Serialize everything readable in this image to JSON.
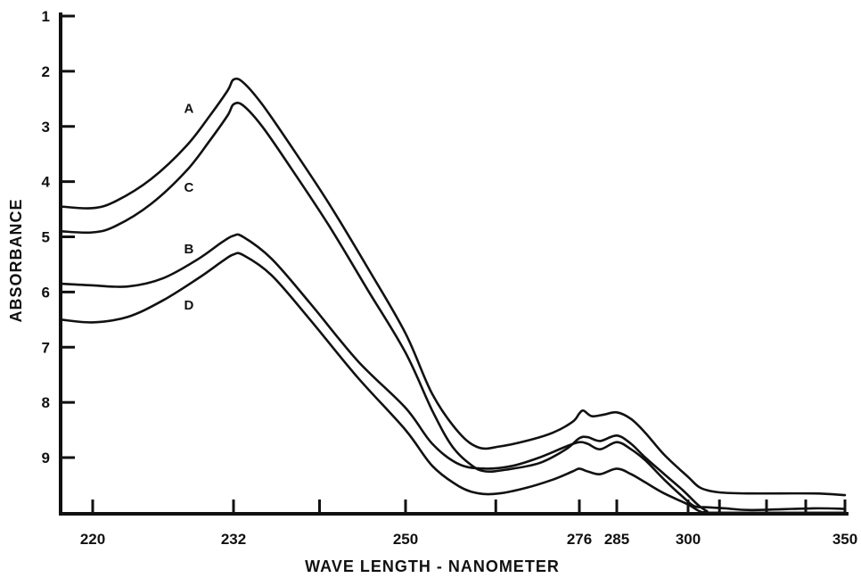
{
  "chart_data": {
    "type": "line",
    "xlabel": "WAVE LENGTH - NANOMETER",
    "ylabel": "ABSORBANCE",
    "x_ticks": [
      "220",
      "232",
      "250",
      "276",
      "285",
      "300",
      "350"
    ],
    "y_ticks": [
      "1",
      "2",
      "3",
      "4",
      "5",
      "6",
      "7",
      "8",
      "9"
    ],
    "ylim": [
      1,
      10
    ],
    "y_axis_direction": "increasing-downward",
    "grid": false,
    "legend": "inline labels",
    "series": [
      {
        "name": "A",
        "points": [
          [
            218.5,
            4.45
          ],
          [
            220,
            4.48
          ],
          [
            222,
            4.35
          ],
          [
            225,
            3.95
          ],
          [
            228,
            3.35
          ],
          [
            230,
            2.8
          ],
          [
            231.5,
            2.35
          ],
          [
            232,
            2.15
          ],
          [
            233,
            2.2
          ],
          [
            235,
            2.6
          ],
          [
            238,
            3.35
          ],
          [
            242,
            4.4
          ],
          [
            246,
            5.55
          ],
          [
            250,
            6.75
          ],
          [
            254,
            7.85
          ],
          [
            258,
            8.55
          ],
          [
            261,
            8.82
          ],
          [
            264,
            8.8
          ],
          [
            268,
            8.7
          ],
          [
            272,
            8.55
          ],
          [
            275,
            8.35
          ],
          [
            276,
            8.2
          ],
          [
            277,
            8.15
          ],
          [
            279,
            8.25
          ],
          [
            282,
            8.22
          ],
          [
            285,
            8.18
          ],
          [
            288,
            8.3
          ],
          [
            291,
            8.55
          ],
          [
            295,
            8.95
          ],
          [
            300,
            9.35
          ],
          [
            304,
            9.55
          ],
          [
            310,
            9.63
          ],
          [
            320,
            9.65
          ],
          [
            340,
            9.65
          ],
          [
            350,
            9.68
          ]
        ]
      },
      {
        "name": "C",
        "points": [
          [
            218.5,
            4.9
          ],
          [
            220,
            4.92
          ],
          [
            222,
            4.8
          ],
          [
            225,
            4.4
          ],
          [
            228,
            3.8
          ],
          [
            230,
            3.25
          ],
          [
            231.5,
            2.8
          ],
          [
            232,
            2.6
          ],
          [
            233,
            2.62
          ],
          [
            235,
            3.0
          ],
          [
            238,
            3.75
          ],
          [
            242,
            4.8
          ],
          [
            246,
            5.95
          ],
          [
            250,
            7.1
          ],
          [
            254,
            8.15
          ],
          [
            257,
            8.8
          ],
          [
            260,
            9.15
          ],
          [
            262,
            9.25
          ],
          [
            265,
            9.22
          ],
          [
            270,
            9.1
          ],
          [
            274,
            8.85
          ],
          [
            276,
            8.65
          ],
          [
            278,
            8.63
          ],
          [
            281,
            8.7
          ],
          [
            285,
            8.6
          ],
          [
            288,
            8.75
          ],
          [
            291,
            9.0
          ],
          [
            295,
            9.3
          ],
          [
            299,
            9.6
          ],
          [
            303,
            9.85
          ],
          [
            306,
            9.97
          ],
          [
            308,
            10.0
          ],
          [
            350,
            10.0
          ]
        ]
      },
      {
        "name": "B",
        "points": [
          [
            218.5,
            5.85
          ],
          [
            220,
            5.88
          ],
          [
            223,
            5.9
          ],
          [
            226,
            5.75
          ],
          [
            229,
            5.4
          ],
          [
            231,
            5.1
          ],
          [
            232,
            4.98
          ],
          [
            233,
            5.0
          ],
          [
            236,
            5.4
          ],
          [
            240,
            6.2
          ],
          [
            245,
            7.25
          ],
          [
            250,
            8.1
          ],
          [
            254,
            8.75
          ],
          [
            258,
            9.12
          ],
          [
            262,
            9.2
          ],
          [
            266,
            9.15
          ],
          [
            270,
            9.0
          ],
          [
            274,
            8.8
          ],
          [
            276,
            8.72
          ],
          [
            278,
            8.75
          ],
          [
            281,
            8.85
          ],
          [
            285,
            8.72
          ],
          [
            288,
            8.85
          ],
          [
            291,
            9.05
          ],
          [
            295,
            9.4
          ],
          [
            299,
            9.72
          ],
          [
            302,
            9.88
          ],
          [
            306,
            9.9
          ],
          [
            312,
            9.92
          ],
          [
            320,
            9.95
          ],
          [
            340,
            9.92
          ],
          [
            350,
            9.93
          ]
        ]
      },
      {
        "name": "D",
        "points": [
          [
            218.5,
            6.5
          ],
          [
            220,
            6.55
          ],
          [
            223,
            6.45
          ],
          [
            226,
            6.15
          ],
          [
            229,
            5.75
          ],
          [
            231,
            5.45
          ],
          [
            232,
            5.32
          ],
          [
            233,
            5.33
          ],
          [
            236,
            5.7
          ],
          [
            240,
            6.5
          ],
          [
            245,
            7.55
          ],
          [
            250,
            8.5
          ],
          [
            254,
            9.15
          ],
          [
            258,
            9.52
          ],
          [
            261,
            9.65
          ],
          [
            264,
            9.65
          ],
          [
            268,
            9.55
          ],
          [
            272,
            9.4
          ],
          [
            275,
            9.25
          ],
          [
            276,
            9.2
          ],
          [
            278,
            9.25
          ],
          [
            281,
            9.3
          ],
          [
            285,
            9.2
          ],
          [
            288,
            9.3
          ],
          [
            291,
            9.45
          ],
          [
            295,
            9.65
          ],
          [
            300,
            9.85
          ],
          [
            304,
            9.98
          ],
          [
            308,
            10.0
          ],
          [
            350,
            10.0
          ]
        ]
      }
    ],
    "series_label_positions": [
      {
        "name": "A",
        "x": 228.2,
        "y": 2.75
      },
      {
        "name": "C",
        "x": 228.2,
        "y": 4.18
      },
      {
        "name": "B",
        "x": 228.2,
        "y": 5.3
      },
      {
        "name": "D",
        "x": 228.2,
        "y": 6.32
      }
    ]
  }
}
